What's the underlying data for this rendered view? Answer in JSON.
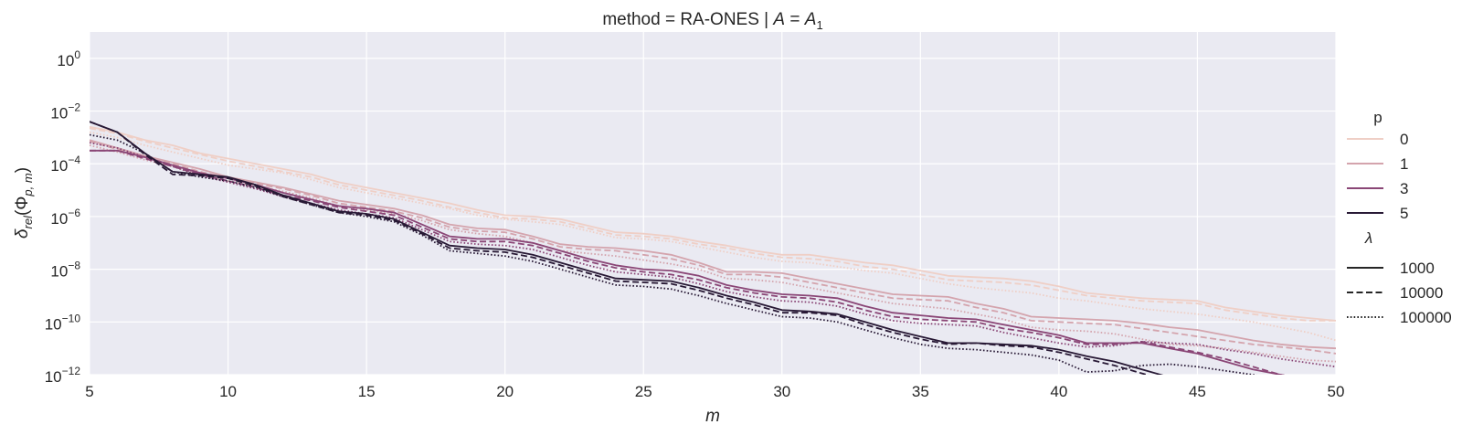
{
  "chart_data": {
    "type": "line",
    "title": "method = RA-ONES | A = A_1",
    "title_parts": {
      "prefix": "method = RA-ONES | ",
      "var": "A",
      "eq": " = ",
      "sub_base": "A",
      "sub": "1"
    },
    "xlabel": "m",
    "ylabel": "δ_rel(Φ_{p,m})",
    "ylabel_parts": {
      "delta": "δ",
      "rel": "rel",
      "phi": "(Φ",
      "pm": "p, m",
      "close": ")"
    },
    "xlim": [
      5,
      50
    ],
    "ylim_log10": [
      -12,
      1
    ],
    "x_ticks": [
      5,
      10,
      15,
      20,
      25,
      30,
      35,
      40,
      45,
      50
    ],
    "x_tick_labels": [
      "5",
      "10",
      "15",
      "20",
      "25",
      "30",
      "35",
      "40",
      "45",
      "50"
    ],
    "y_ticks_log10": [
      0,
      -2,
      -4,
      -6,
      -8,
      -10,
      -12
    ],
    "y_tick_labels": [
      {
        "base": "10",
        "exp": "0"
      },
      {
        "base": "10",
        "exp": "−2"
      },
      {
        "base": "10",
        "exp": "−4"
      },
      {
        "base": "10",
        "exp": "−6"
      },
      {
        "base": "10",
        "exp": "−8"
      },
      {
        "base": "10",
        "exp": "−10"
      },
      {
        "base": "10",
        "exp": "−12"
      }
    ],
    "legend": {
      "placement": "right",
      "hue_title": "p",
      "hue": [
        {
          "label": "0",
          "color": "#efcfc6"
        },
        {
          "label": "1",
          "color": "#d4a4ad"
        },
        {
          "label": "3",
          "color": "#8a4676"
        },
        {
          "label": "5",
          "color": "#281935"
        }
      ],
      "style_title": "λ",
      "styles": [
        {
          "label": "1000",
          "dash": "solid"
        },
        {
          "label": "10000",
          "dash": "dashed"
        },
        {
          "label": "100000",
          "dash": "dotted"
        }
      ]
    },
    "x": [
      5,
      6,
      7,
      8,
      9,
      10,
      11,
      12,
      13,
      14,
      15,
      16,
      17,
      18,
      19,
      20,
      21,
      22,
      23,
      24,
      25,
      26,
      27,
      28,
      29,
      30,
      31,
      32,
      33,
      34,
      35,
      36,
      37,
      38,
      39,
      40,
      41,
      42,
      43,
      44,
      45,
      46,
      47,
      48,
      49,
      50
    ],
    "series": [
      {
        "name": "p=0, λ=1000",
        "p": "0",
        "lambda": "1000",
        "log10_values": [
          -2.6,
          -2.8,
          -3.1,
          -3.3,
          -3.6,
          -3.8,
          -4.0,
          -4.2,
          -4.4,
          -4.7,
          -4.9,
          -5.1,
          -5.3,
          -5.5,
          -5.75,
          -5.95,
          -6.0,
          -6.1,
          -6.35,
          -6.6,
          -6.65,
          -6.75,
          -6.95,
          -7.1,
          -7.3,
          -7.45,
          -7.45,
          -7.6,
          -7.75,
          -7.85,
          -8.05,
          -8.25,
          -8.3,
          -8.35,
          -8.45,
          -8.65,
          -8.9,
          -9.0,
          -9.1,
          -9.15,
          -9.2,
          -9.45,
          -9.6,
          -9.75,
          -9.85,
          -9.95
        ]
      },
      {
        "name": "p=0, λ=10000",
        "p": "0",
        "lambda": "10000",
        "log10_values": [
          -2.65,
          -2.85,
          -3.15,
          -3.4,
          -3.65,
          -3.9,
          -4.1,
          -4.3,
          -4.5,
          -4.8,
          -5.0,
          -5.2,
          -5.4,
          -5.65,
          -5.85,
          -6.05,
          -6.1,
          -6.2,
          -6.45,
          -6.7,
          -6.75,
          -6.85,
          -7.05,
          -7.2,
          -7.4,
          -7.55,
          -7.6,
          -7.7,
          -7.9,
          -8.0,
          -8.2,
          -8.4,
          -8.45,
          -8.5,
          -8.6,
          -8.8,
          -9.0,
          -9.1,
          -9.2,
          -9.25,
          -9.3,
          -9.55,
          -9.7,
          -9.85,
          -9.95,
          -9.95
        ]
      },
      {
        "name": "p=0, λ=100000",
        "p": "0",
        "lambda": "100000",
        "log10_values": [
          -2.8,
          -3.0,
          -3.3,
          -3.55,
          -3.8,
          -4.05,
          -4.2,
          -4.35,
          -4.6,
          -4.9,
          -5.1,
          -5.3,
          -5.5,
          -5.7,
          -5.95,
          -6.1,
          -6.2,
          -6.3,
          -6.55,
          -6.8,
          -6.85,
          -6.95,
          -7.15,
          -7.35,
          -7.55,
          -7.7,
          -7.75,
          -7.9,
          -8.05,
          -8.15,
          -8.35,
          -8.55,
          -8.7,
          -8.8,
          -8.9,
          -9.1,
          -9.2,
          -9.35,
          -9.5,
          -9.6,
          -9.7,
          -9.85,
          -10.0,
          -10.2,
          -10.4,
          -10.7
        ]
      },
      {
        "name": "p=1, λ=1000",
        "p": "1",
        "lambda": "1000",
        "log10_values": [
          -3.1,
          -3.4,
          -3.7,
          -3.95,
          -4.2,
          -4.5,
          -4.7,
          -4.9,
          -5.15,
          -5.4,
          -5.55,
          -5.7,
          -5.95,
          -6.3,
          -6.45,
          -6.5,
          -6.75,
          -7.05,
          -7.15,
          -7.2,
          -7.3,
          -7.45,
          -7.75,
          -8.1,
          -8.1,
          -8.15,
          -8.35,
          -8.55,
          -8.75,
          -8.95,
          -9.0,
          -9.05,
          -9.3,
          -9.5,
          -9.8,
          -9.85,
          -9.9,
          -9.95,
          -10.05,
          -10.2,
          -10.3,
          -10.5,
          -10.7,
          -10.85,
          -10.95,
          -11.0
        ]
      },
      {
        "name": "p=1, λ=10000",
        "p": "1",
        "lambda": "10000",
        "log10_values": [
          -3.15,
          -3.45,
          -3.75,
          -4.0,
          -4.3,
          -4.55,
          -4.75,
          -4.95,
          -5.2,
          -5.5,
          -5.65,
          -5.8,
          -6.05,
          -6.4,
          -6.55,
          -6.6,
          -6.85,
          -7.15,
          -7.25,
          -7.3,
          -7.45,
          -7.6,
          -7.85,
          -8.2,
          -8.2,
          -8.3,
          -8.5,
          -8.7,
          -8.9,
          -9.1,
          -9.15,
          -9.2,
          -9.45,
          -9.65,
          -9.95,
          -10.0,
          -10.05,
          -10.1,
          -10.25,
          -10.4,
          -10.55,
          -10.7,
          -10.85,
          -10.95,
          -11.05,
          -11.2
        ]
      },
      {
        "name": "p=1, λ=100000",
        "p": "1",
        "lambda": "100000",
        "log10_values": [
          -3.3,
          -3.55,
          -3.85,
          -4.1,
          -4.4,
          -4.65,
          -4.85,
          -5.05,
          -5.3,
          -5.6,
          -5.75,
          -5.9,
          -6.15,
          -6.5,
          -6.65,
          -6.75,
          -7.0,
          -7.3,
          -7.4,
          -7.5,
          -7.65,
          -7.8,
          -8.0,
          -8.35,
          -8.4,
          -8.5,
          -8.7,
          -8.9,
          -9.1,
          -9.3,
          -9.4,
          -9.5,
          -9.7,
          -9.9,
          -10.2,
          -10.3,
          -10.35,
          -10.45,
          -10.65,
          -10.85,
          -10.9,
          -11.0,
          -11.15,
          -11.3,
          -11.45,
          -11.5
        ]
      },
      {
        "name": "p=3, λ=1000",
        "p": "3",
        "lambda": "1000",
        "log10_values": [
          -3.5,
          -3.5,
          -3.75,
          -4.05,
          -4.35,
          -4.55,
          -4.8,
          -5.1,
          -5.35,
          -5.6,
          -5.7,
          -5.85,
          -6.3,
          -6.75,
          -6.85,
          -6.85,
          -7.0,
          -7.3,
          -7.6,
          -7.85,
          -8.0,
          -8.05,
          -8.25,
          -8.6,
          -8.8,
          -8.95,
          -9.0,
          -9.1,
          -9.4,
          -9.65,
          -9.75,
          -9.85,
          -9.9,
          -10.1,
          -10.3,
          -10.5,
          -10.8,
          -10.8,
          -10.8,
          -11.0,
          -11.2,
          -11.5,
          -11.8,
          -12.0,
          -12.2,
          -12.4
        ]
      },
      {
        "name": "p=3, λ=10000",
        "p": "3",
        "lambda": "10000",
        "log10_values": [
          -3.5,
          -3.5,
          -3.8,
          -4.1,
          -4.4,
          -4.65,
          -4.9,
          -5.2,
          -5.4,
          -5.65,
          -5.8,
          -5.95,
          -6.4,
          -6.85,
          -6.95,
          -6.95,
          -7.1,
          -7.4,
          -7.7,
          -7.95,
          -8.1,
          -8.2,
          -8.4,
          -8.7,
          -8.9,
          -9.05,
          -9.1,
          -9.25,
          -9.55,
          -9.8,
          -9.9,
          -9.95,
          -10.0,
          -10.25,
          -10.4,
          -10.6,
          -10.85,
          -10.85,
          -10.75,
          -10.95,
          -11.15,
          -11.4,
          -11.7,
          -12.0,
          -12.2,
          -12.4
        ]
      },
      {
        "name": "p=3, λ=100000",
        "p": "3",
        "lambda": "100000",
        "log10_values": [
          -3.2,
          -3.4,
          -3.75,
          -4.1,
          -4.45,
          -4.7,
          -4.95,
          -5.25,
          -5.5,
          -5.75,
          -5.9,
          -6.05,
          -6.5,
          -6.95,
          -7.05,
          -7.1,
          -7.25,
          -7.55,
          -7.85,
          -8.1,
          -8.2,
          -8.3,
          -8.55,
          -8.85,
          -9.05,
          -9.2,
          -9.25,
          -9.4,
          -9.7,
          -9.95,
          -10.05,
          -10.1,
          -10.15,
          -10.4,
          -10.6,
          -10.8,
          -10.95,
          -10.9,
          -10.75,
          -10.8,
          -10.85,
          -11.05,
          -11.2,
          -11.4,
          -11.55,
          -11.7
        ]
      },
      {
        "name": "p=5, λ=1000",
        "p": "5",
        "lambda": "1000",
        "log10_values": [
          -2.4,
          -2.8,
          -3.6,
          -4.3,
          -4.4,
          -4.5,
          -4.8,
          -5.2,
          -5.5,
          -5.8,
          -5.9,
          -6.1,
          -6.6,
          -7.1,
          -7.2,
          -7.25,
          -7.45,
          -7.75,
          -8.05,
          -8.35,
          -8.4,
          -8.45,
          -8.7,
          -9.0,
          -9.25,
          -9.55,
          -9.6,
          -9.7,
          -10.0,
          -10.3,
          -10.55,
          -10.8,
          -10.8,
          -10.85,
          -10.9,
          -11.05,
          -11.3,
          -11.5,
          -11.8,
          -12.1,
          -12.4,
          -12.6,
          -12.8,
          -13.0,
          -13.2,
          -13.4
        ]
      },
      {
        "name": "p=5, λ=10000",
        "p": "5",
        "lambda": "10000",
        "log10_values": [
          -2.4,
          -2.8,
          -3.65,
          -4.4,
          -4.45,
          -4.55,
          -4.85,
          -5.25,
          -5.55,
          -5.85,
          -5.95,
          -6.15,
          -6.65,
          -7.2,
          -7.3,
          -7.35,
          -7.55,
          -7.85,
          -8.15,
          -8.45,
          -8.5,
          -8.55,
          -8.8,
          -9.1,
          -9.35,
          -9.65,
          -9.65,
          -9.75,
          -10.1,
          -10.4,
          -10.65,
          -10.85,
          -10.8,
          -10.9,
          -10.95,
          -11.15,
          -11.4,
          -11.65,
          -11.95,
          -12.25,
          -12.5,
          -12.7,
          -12.9,
          -13.1,
          -13.3,
          -13.5
        ]
      },
      {
        "name": "p=5, λ=100000",
        "p": "5",
        "lambda": "100000",
        "log10_values": [
          -2.9,
          -3.1,
          -3.6,
          -4.3,
          -4.5,
          -4.65,
          -4.9,
          -5.25,
          -5.55,
          -5.85,
          -6.0,
          -6.2,
          -6.7,
          -7.3,
          -7.4,
          -7.5,
          -7.7,
          -8.0,
          -8.3,
          -8.6,
          -8.65,
          -8.75,
          -9.0,
          -9.3,
          -9.55,
          -9.8,
          -9.85,
          -10.0,
          -10.3,
          -10.6,
          -10.85,
          -11.0,
          -11.05,
          -11.15,
          -11.25,
          -11.45,
          -11.9,
          -11.85,
          -11.65,
          -11.6,
          -11.7,
          -11.85,
          -12.0,
          -12.2,
          -12.4,
          -12.6
        ]
      }
    ]
  }
}
